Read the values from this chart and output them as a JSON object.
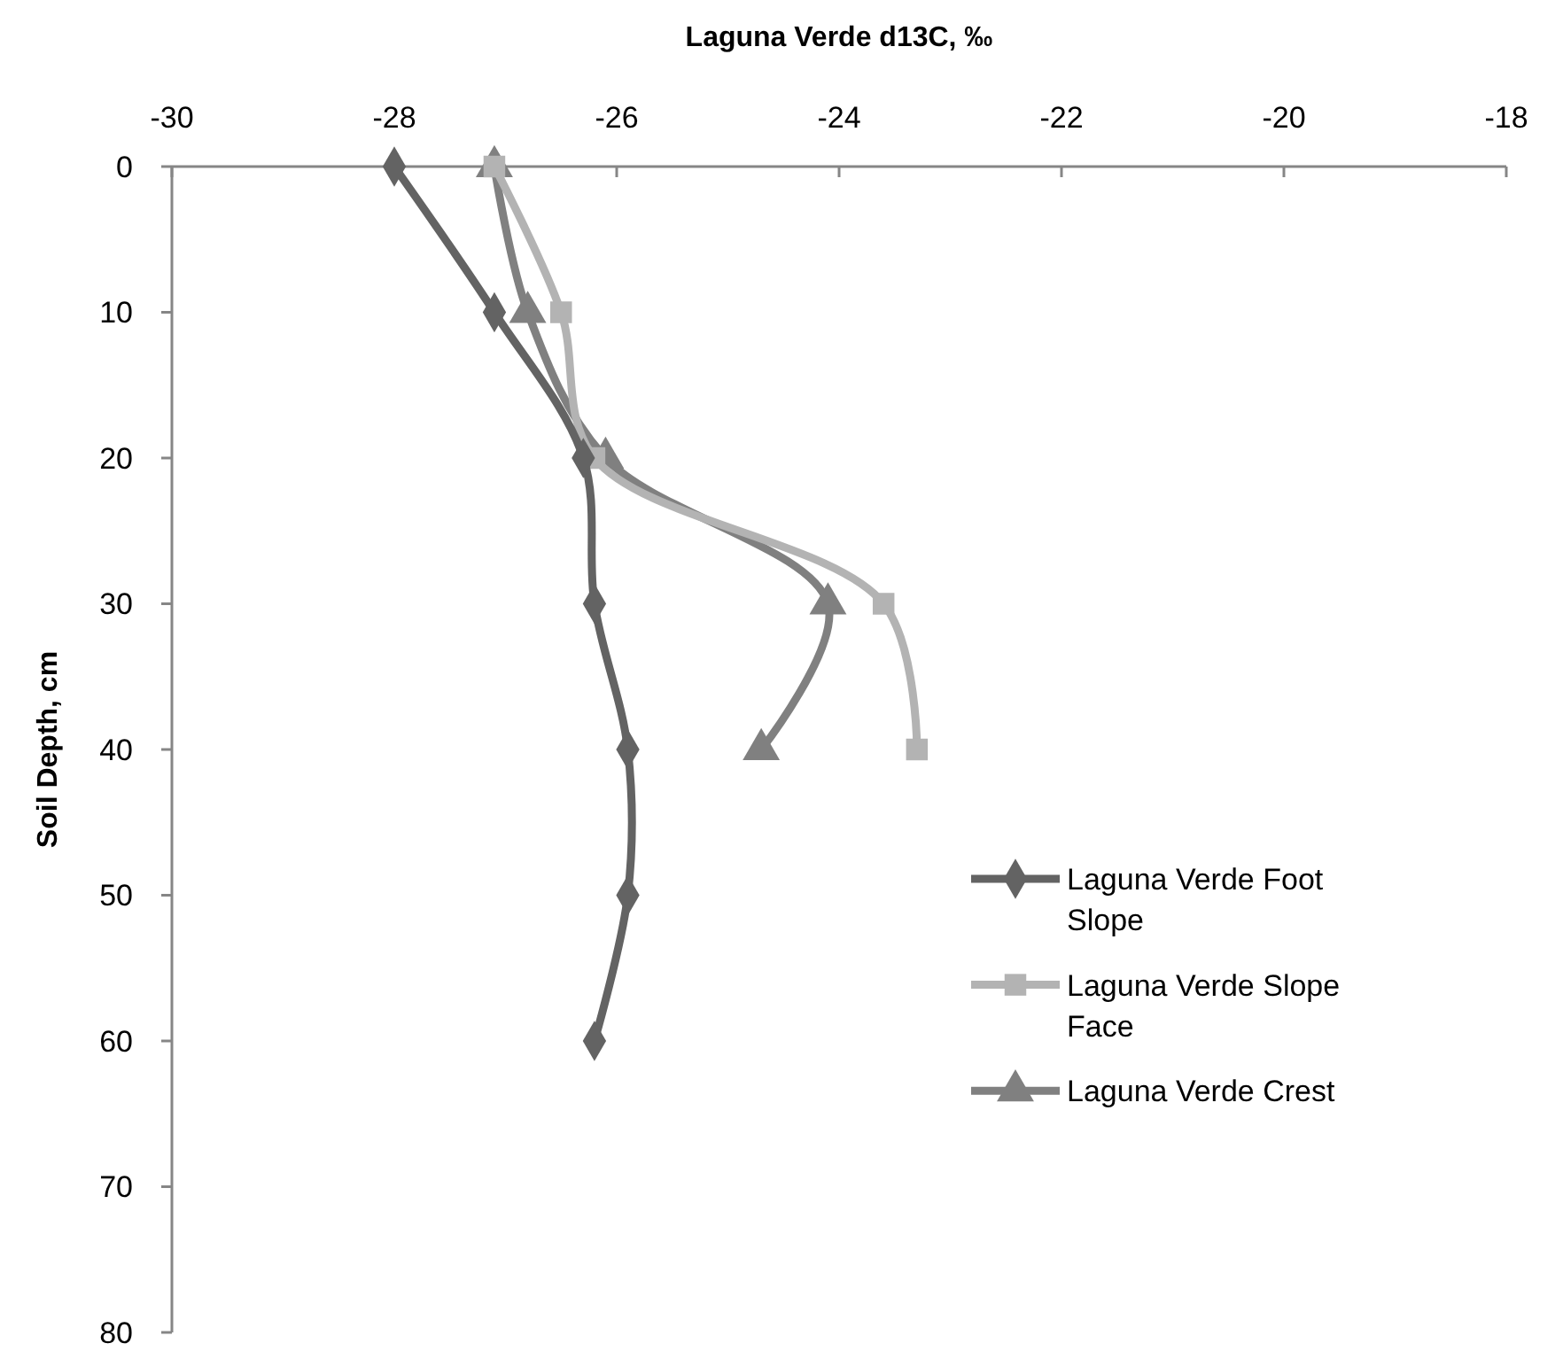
{
  "chart_data": {
    "type": "line",
    "xlabel": "Laguna Verde d13C, ‰",
    "ylabel": "Soil Depth, cm",
    "xlim": [
      -30,
      -18
    ],
    "xticks": [
      -30,
      -28,
      -26,
      -24,
      -22,
      -20,
      -18
    ],
    "ylim": [
      80,
      0
    ],
    "yticks": [
      0,
      10,
      20,
      30,
      40,
      50,
      60,
      70,
      80
    ],
    "grid": false,
    "legend": "bottom right",
    "series": [
      {
        "name": "Laguna Verde Foot Slope",
        "color": "#636363",
        "marker": "diamond",
        "x": [
          -28.0,
          -27.1,
          -26.3,
          -26.2,
          -25.9,
          -25.9,
          -26.2
        ],
        "values": [
          0,
          10,
          20,
          30,
          40,
          50,
          60
        ]
      },
      {
        "name": "Laguna Verde Slope Face",
        "color": "#b3b3b3",
        "marker": "square",
        "x": [
          -27.1,
          -26.5,
          -26.2,
          -23.6,
          -23.3
        ],
        "values": [
          0,
          10,
          20,
          30,
          40
        ]
      },
      {
        "name": "Laguna Verde Crest",
        "color": "#808080",
        "marker": "triangle",
        "x": [
          -27.1,
          -26.8,
          -26.1,
          -24.1,
          -24.7
        ],
        "values": [
          0,
          10,
          20,
          30,
          40
        ]
      }
    ]
  }
}
